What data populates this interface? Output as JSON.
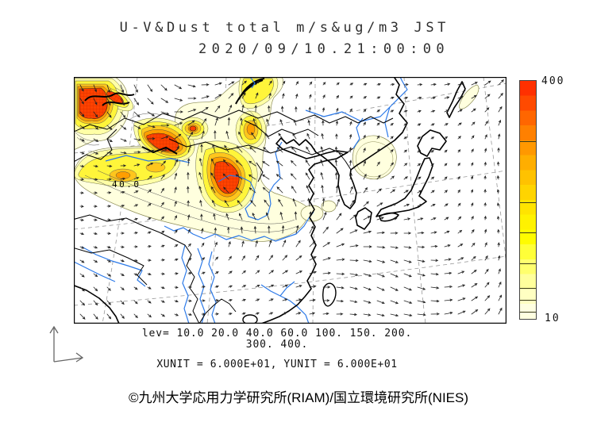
{
  "header": {
    "title": "U-V&Dust total m/s&ug/m3 JST",
    "datetime": "2020/09/10.21:00:00"
  },
  "map": {
    "contour_label": "40.0"
  },
  "colorbar": {
    "max_label": "400",
    "min_label": "10",
    "min": 10,
    "max": 400,
    "levels": [
      10,
      20,
      40,
      60,
      100,
      150,
      200,
      300,
      400
    ],
    "colors": [
      "#FF3000",
      "#FF4A00",
      "#FF6600",
      "#FF8000",
      "#FF9800",
      "#FFAE00",
      "#FFC200",
      "#FFD400",
      "#FFE400",
      "#FFF200",
      "#FFFC00",
      "#FFFF38",
      "#FFFF6E",
      "#FFFF9C",
      "#FFFFC2",
      "#FFFFE0"
    ]
  },
  "footer": {
    "lev_line1": "lev= 10.0 20.0 40.0 60.0 100. 150. 200.",
    "lev_line2": "300. 400.",
    "unit_line": "XUNIT = 6.000E+01, YUNIT = 6.000E+01",
    "copyright": "©九州大学応用力学研究所(RIAM)/国立環境研究所(NIES)"
  },
  "chart_data": {
    "type": "heatmap",
    "title": "U-V&Dust total m/s&ug/m3 JST",
    "datetime": "2020/09/10.21:00:00",
    "wind_unit": "m/s",
    "dust_unit": "ug/m3",
    "timezone": "JST",
    "contour_levels": [
      10.0,
      20.0,
      40.0,
      60.0,
      100,
      150,
      200,
      300,
      400
    ],
    "colorbar_range": [
      10,
      400
    ],
    "xunit": "6.000E+01",
    "yunit": "6.000E+01",
    "legend_position": "right"
  }
}
